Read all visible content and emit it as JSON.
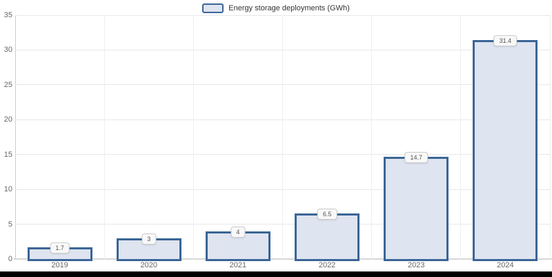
{
  "chart_data": {
    "type": "bar",
    "title": "",
    "legend": "Energy storage deployments (GWh)",
    "legend_position": "top-center",
    "categories": [
      "2019",
      "2020",
      "2021",
      "2022",
      "2023",
      "2024"
    ],
    "values": [
      1.7,
      3,
      4,
      6.5,
      14.7,
      31.4
    ],
    "value_labels": [
      "1.7",
      "3",
      "4",
      "6.5",
      "14.7",
      "31.4"
    ],
    "xlabel": "",
    "ylabel": "",
    "ylim": [
      0,
      35
    ],
    "ytick_step": 5,
    "yticks": [
      "0",
      "5",
      "10",
      "15",
      "20",
      "25",
      "30",
      "35"
    ],
    "grid": true,
    "colors": {
      "bar_fill": "#dee4f0",
      "bar_border": "#3a6596",
      "grid_line": "#e8e8e8",
      "grid_line_v": "#efefef",
      "axis_line": "#cccccc",
      "baseline": "#d6d6d6",
      "label_text": "#666666",
      "legend_text": "#333333",
      "badge_bg": "#f8f8f8",
      "badge_border": "#cccccc",
      "badge_text": "#555555",
      "bottom_bar": "#000000"
    }
  }
}
